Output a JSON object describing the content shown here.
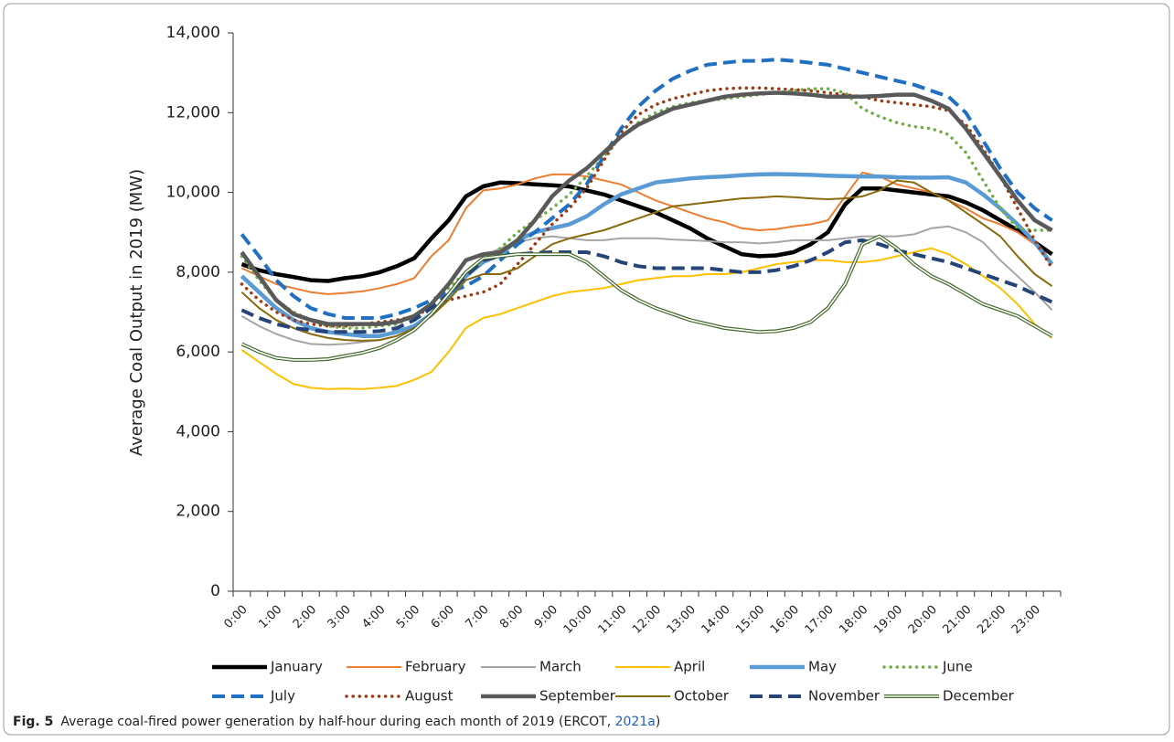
{
  "chart_data": {
    "type": "line",
    "y_label": "Average Coal Output in 2019 (MW)",
    "categories": [
      "0:00",
      null,
      "1:00",
      null,
      "2:00",
      null,
      "3:00",
      null,
      "4:00",
      null,
      "5:00",
      null,
      "6:00",
      null,
      "7:00",
      null,
      "8:00",
      null,
      "9:00",
      null,
      "10:00",
      null,
      "11:00",
      null,
      "12:00",
      null,
      "13:00",
      null,
      "14:00",
      null,
      "15:00",
      null,
      "16:00",
      null,
      "17:00",
      null,
      "18:00",
      null,
      "19:00",
      null,
      "20:00",
      null,
      "21:00",
      null,
      "22:00",
      null,
      "23:00",
      null
    ],
    "ylim": [
      0,
      14000
    ],
    "yticks": [
      0,
      {
        "value": 2000,
        "label": "2,000"
      },
      {
        "value": 4000,
        "label": "4,000"
      },
      {
        "value": 6000,
        "label": "6,000"
      },
      {
        "value": 8000,
        "label": "8,000"
      },
      {
        "value": 10000,
        "label": "10,000"
      },
      {
        "value": 12000,
        "label": "12,000"
      },
      {
        "value": 14000,
        "label": "14,000"
      }
    ],
    "grid": false,
    "legend": "bottom",
    "series": [
      {
        "name": "January",
        "color": "#000000",
        "style": "thick",
        "values": [
          8200,
          8050,
          7950,
          7880,
          7800,
          7780,
          7850,
          7900,
          8000,
          8150,
          8350,
          8850,
          9300,
          9900,
          10150,
          10250,
          10230,
          10200,
          10180,
          10150,
          10050,
          9950,
          9800,
          9650,
          9500,
          9300,
          9100,
          8850,
          8650,
          8450,
          8400,
          8420,
          8500,
          8700,
          9000,
          9700,
          10100,
          10100,
          10050,
          10000,
          9950,
          9900,
          9750,
          9550,
          9300,
          9050,
          8750,
          8450
        ]
      },
      {
        "name": "February",
        "color": "#ed7d31",
        "style": "solid",
        "values": [
          8100,
          7900,
          7700,
          7600,
          7500,
          7450,
          7480,
          7520,
          7600,
          7700,
          7850,
          8400,
          8800,
          9600,
          10050,
          10100,
          10200,
          10350,
          10450,
          10450,
          10400,
          10300,
          10200,
          10000,
          9800,
          9650,
          9500,
          9350,
          9250,
          9100,
          9050,
          9080,
          9150,
          9200,
          9300,
          9900,
          10500,
          10400,
          10200,
          10100,
          10000,
          9800,
          9600,
          9350,
          9200,
          9000,
          8700,
          8200
        ]
      },
      {
        "name": "March",
        "color": "#a5a5a5",
        "style": "solid",
        "values": [
          6900,
          6650,
          6450,
          6300,
          6200,
          6180,
          6200,
          6250,
          6300,
          6400,
          6600,
          6900,
          7300,
          7900,
          8400,
          8600,
          8750,
          8850,
          8900,
          8850,
          8800,
          8800,
          8850,
          8850,
          8850,
          8820,
          8800,
          8780,
          8750,
          8750,
          8720,
          8750,
          8800,
          8800,
          8800,
          8850,
          8900,
          8900,
          8900,
          8950,
          9100,
          9150,
          9000,
          8750,
          8300,
          7900,
          7500,
          7050
        ]
      },
      {
        "name": "April",
        "color": "#ffc000",
        "style": "solid",
        "values": [
          6050,
          5750,
          5450,
          5200,
          5100,
          5070,
          5080,
          5070,
          5100,
          5150,
          5300,
          5500,
          6000,
          6600,
          6850,
          6950,
          7100,
          7250,
          7400,
          7500,
          7550,
          7600,
          7700,
          7800,
          7850,
          7900,
          7900,
          7950,
          7950,
          8000,
          8100,
          8200,
          8250,
          8300,
          8300,
          8250,
          8250,
          8300,
          8400,
          8500,
          8600,
          8450,
          8200,
          7900,
          7600,
          7200,
          6700,
          6350
        ]
      },
      {
        "name": "May",
        "color": "#5b9bd5",
        "style": "thick",
        "values": [
          7900,
          7500,
          7100,
          6800,
          6600,
          6500,
          6450,
          6400,
          6400,
          6500,
          6650,
          6950,
          7400,
          7900,
          8250,
          8450,
          8800,
          9000,
          9100,
          9200,
          9400,
          9700,
          9950,
          10100,
          10250,
          10300,
          10350,
          10380,
          10400,
          10430,
          10450,
          10460,
          10450,
          10440,
          10420,
          10410,
          10400,
          10400,
          10380,
          10370,
          10370,
          10380,
          10250,
          9950,
          9600,
          9200,
          8750,
          8200
        ]
      },
      {
        "name": "June",
        "color": "#70ad47",
        "style": "dotted",
        "values": [
          8400,
          7800,
          7300,
          7000,
          6800,
          6650,
          6600,
          6600,
          6650,
          6700,
          6900,
          7200,
          7600,
          8000,
          8300,
          8600,
          9000,
          9300,
          9600,
          9950,
          10400,
          10900,
          11400,
          11750,
          12000,
          12150,
          12250,
          12300,
          12350,
          12400,
          12450,
          12500,
          12550,
          12600,
          12600,
          12500,
          12100,
          11900,
          11750,
          11650,
          11600,
          11450,
          11000,
          10300,
          9600,
          9100,
          9050,
          9050
        ]
      },
      {
        "name": "July",
        "color": "#1f6fc2",
        "style": "dashed",
        "values": [
          8950,
          8400,
          7800,
          7400,
          7100,
          6950,
          6850,
          6850,
          6850,
          6950,
          7100,
          7300,
          7500,
          7650,
          7900,
          8300,
          8700,
          9000,
          9350,
          9700,
          10200,
          10900,
          11600,
          12150,
          12550,
          12850,
          13050,
          13200,
          13250,
          13300,
          13300,
          13330,
          13300,
          13250,
          13200,
          13100,
          13000,
          12900,
          12800,
          12700,
          12550,
          12400,
          12000,
          11300,
          10600,
          10000,
          9600,
          9300
        ]
      },
      {
        "name": "August",
        "color": "#9e3a12",
        "style": "dotted",
        "values": [
          7700,
          7300,
          7000,
          6800,
          6700,
          6650,
          6650,
          6700,
          6750,
          6800,
          6900,
          7100,
          7300,
          7400,
          7500,
          7700,
          8200,
          8700,
          9200,
          9600,
          10100,
          10800,
          11500,
          11950,
          12200,
          12350,
          12450,
          12550,
          12600,
          12620,
          12620,
          12600,
          12580,
          12550,
          12500,
          12450,
          12400,
          12300,
          12250,
          12200,
          12150,
          12050,
          11700,
          11100,
          10400,
          9600,
          8800,
          8100
        ]
      },
      {
        "name": "September",
        "color": "#595959",
        "style": "thick",
        "values": [
          8500,
          7900,
          7300,
          6950,
          6800,
          6700,
          6700,
          6700,
          6700,
          6750,
          6900,
          7200,
          7700,
          8300,
          8450,
          8500,
          8800,
          9300,
          9900,
          10300,
          10600,
          11000,
          11400,
          11700,
          11900,
          12100,
          12200,
          12300,
          12400,
          12450,
          12480,
          12500,
          12480,
          12450,
          12400,
          12400,
          12400,
          12420,
          12450,
          12450,
          12300,
          12100,
          11600,
          11000,
          10400,
          9800,
          9300,
          9050
        ]
      },
      {
        "name": "October",
        "color": "#8a6a0e",
        "style": "solid",
        "values": [
          7500,
          7100,
          6800,
          6600,
          6450,
          6350,
          6300,
          6280,
          6300,
          6400,
          6600,
          6900,
          7300,
          7800,
          7950,
          7950,
          8100,
          8400,
          8700,
          8850,
          8950,
          9050,
          9200,
          9350,
          9500,
          9650,
          9700,
          9750,
          9800,
          9850,
          9870,
          9900,
          9880,
          9850,
          9830,
          9850,
          9900,
          10050,
          10300,
          10250,
          10000,
          9800,
          9500,
          9200,
          8900,
          8400,
          7950,
          7650
        ]
      },
      {
        "name": "November",
        "color": "#264478",
        "style": "dashed",
        "values": [
          7050,
          6850,
          6700,
          6600,
          6550,
          6500,
          6500,
          6500,
          6520,
          6600,
          6800,
          7100,
          7450,
          7900,
          8300,
          8400,
          8450,
          8480,
          8500,
          8500,
          8500,
          8400,
          8250,
          8150,
          8100,
          8100,
          8100,
          8100,
          8050,
          8000,
          8000,
          8050,
          8150,
          8300,
          8500,
          8750,
          8800,
          8700,
          8550,
          8450,
          8350,
          8250,
          8100,
          7950,
          7800,
          7650,
          7450,
          7250
        ]
      },
      {
        "name": "December",
        "color": "#43682b",
        "style": "double",
        "values": [
          6200,
          6000,
          5850,
          5800,
          5800,
          5820,
          5900,
          5980,
          6100,
          6300,
          6550,
          6950,
          7450,
          8000,
          8350,
          8400,
          8450,
          8450,
          8450,
          8450,
          8250,
          7900,
          7550,
          7300,
          7100,
          6950,
          6800,
          6700,
          6600,
          6550,
          6500,
          6520,
          6600,
          6750,
          7100,
          7700,
          8700,
          8900,
          8600,
          8200,
          7900,
          7700,
          7450,
          7200,
          7050,
          6900,
          6650,
          6400
        ]
      }
    ]
  },
  "caption": {
    "label": "Fig. 5",
    "text": "Average coal-fired power generation by half-hour during each month of 2019 (ERCOT, ",
    "link": "2021a",
    "end": ")"
  }
}
